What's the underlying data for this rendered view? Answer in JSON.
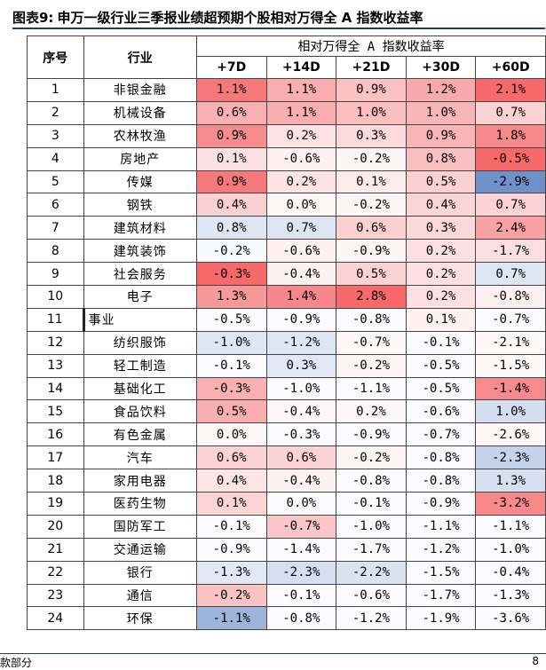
{
  "title": {
    "fig_label": "图表9:",
    "text": "申万一级行业三季报业绩超预期个股相对万得全 A 指数收益率"
  },
  "table": {
    "seq_header": "序号",
    "industry_header": "行业",
    "group_header": "相对万得全 A 指数收益率",
    "columns": [
      "+7D",
      "+14D",
      "+21D",
      "+30D",
      "+60D"
    ],
    "rows": [
      {
        "seq": "1",
        "industry": "非银金融",
        "values": [
          "1.1%",
          "1.1%",
          "0.9%",
          "1.2%",
          "2.1%"
        ]
      },
      {
        "seq": "2",
        "industry": "机械设备",
        "values": [
          "0.6%",
          "1.1%",
          "1.0%",
          "1.0%",
          "0.7%"
        ]
      },
      {
        "seq": "3",
        "industry": "农林牧渔",
        "values": [
          "0.9%",
          "0.2%",
          "0.3%",
          "0.9%",
          "1.8%"
        ]
      },
      {
        "seq": "4",
        "industry": "房地产",
        "values": [
          "0.1%",
          "-0.6%",
          "-0.2%",
          "0.8%",
          "-0.5%"
        ]
      },
      {
        "seq": "5",
        "industry": "传媒",
        "values": [
          "0.9%",
          "0.2%",
          "0.1%",
          "0.5%",
          "-2.9%"
        ]
      },
      {
        "seq": "6",
        "industry": "钢铁",
        "values": [
          "0.4%",
          "0.0%",
          "-0.2%",
          "0.4%",
          "0.7%"
        ]
      },
      {
        "seq": "7",
        "industry": "建筑材料",
        "values": [
          "0.8%",
          "0.7%",
          "0.6%",
          "0.3%",
          "2.4%"
        ]
      },
      {
        "seq": "8",
        "industry": "建筑装饰",
        "values": [
          "-0.2%",
          "-0.6%",
          "-0.9%",
          "0.2%",
          "-1.7%"
        ]
      },
      {
        "seq": "9",
        "industry": "社会服务",
        "values": [
          "-0.3%",
          "-0.4%",
          "0.5%",
          "0.2%",
          "0.7%"
        ]
      },
      {
        "seq": "10",
        "industry": "电子",
        "values": [
          "1.3%",
          "1.4%",
          "2.8%",
          "0.2%",
          "-0.8%"
        ]
      },
      {
        "seq": "11",
        "industry": "事业",
        "values": [
          "-0.5%",
          "-0.9%",
          "-0.8%",
          "0.1%",
          "-0.7%"
        ]
      },
      {
        "seq": "12",
        "industry": "纺织服饰",
        "values": [
          "-1.0%",
          "-1.2%",
          "-0.7%",
          "-0.1%",
          "-2.1%"
        ]
      },
      {
        "seq": "13",
        "industry": "轻工制造",
        "values": [
          "-0.1%",
          "0.3%",
          "-0.2%",
          "-0.5%",
          "-1.5%"
        ]
      },
      {
        "seq": "14",
        "industry": "基础化工",
        "values": [
          "-0.3%",
          "-1.0%",
          "-1.1%",
          "-0.5%",
          "-1.4%"
        ]
      },
      {
        "seq": "15",
        "industry": "食品饮料",
        "values": [
          "0.5%",
          "-0.4%",
          "0.2%",
          "-0.6%",
          "1.0%"
        ]
      },
      {
        "seq": "16",
        "industry": "有色金属",
        "values": [
          "0.0%",
          "-0.3%",
          "-0.9%",
          "-0.7%",
          "-2.6%"
        ]
      },
      {
        "seq": "17",
        "industry": "汽车",
        "values": [
          "0.6%",
          "0.6%",
          "-0.2%",
          "-0.8%",
          "-2.3%"
        ]
      },
      {
        "seq": "18",
        "industry": "家用电器",
        "values": [
          "0.4%",
          "-0.4%",
          "-0.8%",
          "-0.8%",
          "1.3%"
        ]
      },
      {
        "seq": "19",
        "industry": "医药生物",
        "values": [
          "0.1%",
          "0.0%",
          "-0.1%",
          "-0.9%",
          "-3.2%"
        ]
      },
      {
        "seq": "20",
        "industry": "国防军工",
        "values": [
          "-0.1%",
          "-0.7%",
          "-1.0%",
          "-1.1%",
          "-1.1%"
        ]
      },
      {
        "seq": "21",
        "industry": "交通运输",
        "values": [
          "-0.9%",
          "-1.4%",
          "-1.7%",
          "-1.2%",
          "-1.0%"
        ]
      },
      {
        "seq": "22",
        "industry": "银行",
        "values": [
          "-1.3%",
          "-2.3%",
          "-2.2%",
          "-1.5%",
          "-0.4%"
        ]
      },
      {
        "seq": "23",
        "industry": "通信",
        "values": [
          "-0.2%",
          "-0.1%",
          "-0.6%",
          "-1.7%",
          "-1.3%"
        ]
      },
      {
        "seq": "24",
        "industry": "环保",
        "values": [
          "-1.1%",
          "-0.8%",
          "-1.2%",
          "-1.9%",
          "-3.6%"
        ]
      }
    ],
    "cell_colors": [
      [
        "#f6787a",
        "#f8aeb0",
        "#fbc2c4",
        "#f8a9ab",
        "#f8696b"
      ],
      [
        "#f9b0b2",
        "#f8aeb0",
        "#fbbdbe",
        "#f8b6b8",
        "#fbd3d5"
      ],
      [
        "#f78c8e",
        "#fde3e4",
        "#fcdadb",
        "#f8b4b6",
        "#f8898b"
      ],
      [
        "#fce1e2",
        "#fdf0f0",
        "#fdf5f5",
        "#f9c0c2",
        "#f8696b"
      ],
      [
        "#f6787a",
        "#fde3e4",
        "#fdeaea",
        "#fbd0d1",
        "#6f90c9"
      ],
      [
        "#fbd0d1",
        "#fdf7f7",
        "#fdf5f5",
        "#fbd6d7",
        "#fbd3d5"
      ],
      [
        "#dfe6f3",
        "#dfe6f3",
        "#fbd0d1",
        "#fbd9da",
        "#f8a2a4"
      ],
      [
        "#f9fafd",
        "#fdf0f0",
        "#fdf5f5",
        "#fce0e1",
        "#fbdfe0"
      ],
      [
        "#f8696b",
        "#fdf2f2",
        "#fbd3d5",
        "#fce0e1",
        "#dfe6f3"
      ],
      [
        "#f7999b",
        "#f6878a",
        "#f8696b",
        "#fce0e1",
        "#fdf0f0"
      ],
      [
        "#fbfbfe",
        "#fbfbfe",
        "#fbfbfe",
        "#fdf1f1",
        "#fbfbfe"
      ],
      [
        "#dfe6f3",
        "#dfe6f3",
        "#fdf7f7",
        "#fbfbfe",
        "#fdf7f7"
      ],
      [
        "#fbfbfe",
        "#e1e8f4",
        "#fdf5f5",
        "#fbfbfe",
        "#fdf9f9"
      ],
      [
        "#f8b0b2",
        "#fbfbfe",
        "#fbfbfe",
        "#fbfbfe",
        "#f78a8c"
      ],
      [
        "#f8aeb0",
        "#fdf6f6",
        "#fdf7f7",
        "#fbfbfe",
        "#d4def0"
      ],
      [
        "#fdf7f7",
        "#fbfbfe",
        "#fbfbfe",
        "#fbfbfe",
        "#fdf7f7"
      ],
      [
        "#fbd3d5",
        "#fbd3d5",
        "#fdf5f5",
        "#fbfbfe",
        "#c4d2ea"
      ],
      [
        "#fde4e5",
        "#fdf2f2",
        "#fbfbfe",
        "#fbfbfe",
        "#d6e0f1"
      ],
      [
        "#fbd4d5",
        "#fbfbfe",
        "#fbfbfe",
        "#fbfbfe",
        "#f8898b"
      ],
      [
        "#fbfbfe",
        "#fac6c7",
        "#fbfbfe",
        "#fbfbfe",
        "#fbfbfe"
      ],
      [
        "#fbfbfe",
        "#fbfbfe",
        "#fbfbfe",
        "#fbfbfe",
        "#fbfbfe"
      ],
      [
        "#e2e8f4",
        "#d6dfef",
        "#dbe3f1",
        "#fbfbfe",
        "#fbfbfe"
      ],
      [
        "#fac3c4",
        "#fbfbfe",
        "#fbfbfe",
        "#fbfbfe",
        "#fbfbfe"
      ],
      [
        "#9eb4dd",
        "#fbfbfe",
        "#fbfbfe",
        "#fbfbfe",
        "#fbfbfe"
      ]
    ]
  },
  "footer": {
    "left": "款部分",
    "page": "8"
  }
}
